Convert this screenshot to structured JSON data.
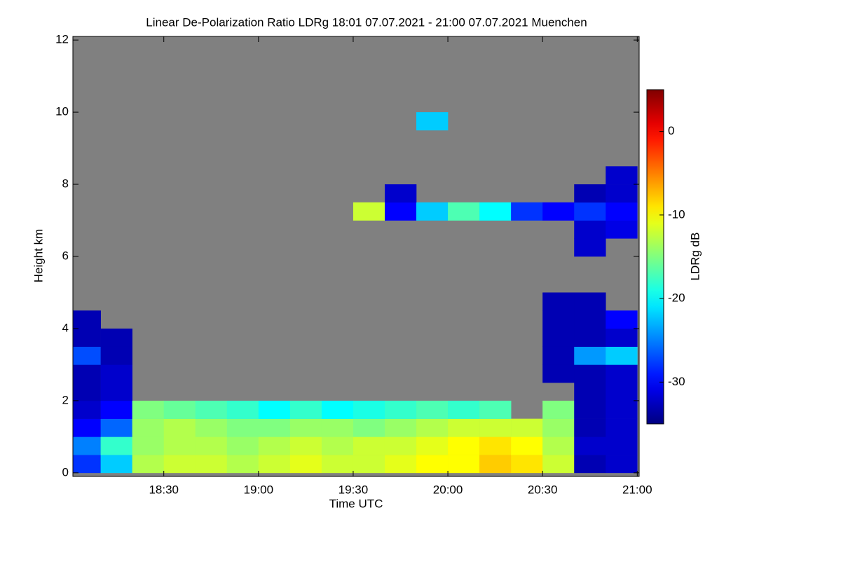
{
  "chart_data": {
    "type": "heatmap",
    "title": "Linear De-Polarization Ratio LDRg   18:01 07.07.2021 - 21:00 07.07.2021 Muenchen",
    "xlabel": "Time UTC",
    "ylabel": "Height km",
    "colorbar_label": "LDRg dB",
    "background": "#808080",
    "colormap": "jet",
    "xlim": [
      18.02,
      21.01
    ],
    "xticks": [
      {
        "value": 18.5,
        "label": "18:30"
      },
      {
        "value": 19,
        "label": "19:00"
      },
      {
        "value": 19.5,
        "label": "19:30"
      },
      {
        "value": 20,
        "label": "20:00"
      },
      {
        "value": 20.5,
        "label": "20:30"
      },
      {
        "value": 21,
        "label": "21:00"
      }
    ],
    "ylim": [
      -0.1,
      12.1
    ],
    "yticks": [
      0,
      2,
      4,
      6,
      8,
      10,
      12
    ],
    "zlim": [
      -35,
      5
    ],
    "zticks": [
      0,
      -10,
      -20,
      -30
    ],
    "x_bins": [
      18,
      18.1667,
      18.3333,
      18.5,
      18.6667,
      18.8333,
      19,
      19.1667,
      19.3333,
      19.5,
      19.6667,
      19.8333,
      20,
      20.1667,
      20.3333,
      20.5,
      20.6667,
      20.8333,
      21
    ],
    "y_bins": [
      0,
      0.5,
      1,
      1.5,
      2,
      2.5,
      3,
      3.5,
      4,
      4.5,
      5,
      5.5,
      6,
      6.5,
      7,
      7.5,
      8,
      8.5,
      9,
      9.5,
      10
    ],
    "values": [
      [
        -28,
        -22,
        -13,
        -12,
        -12,
        -13,
        -12,
        -11,
        -12,
        -12,
        -11,
        -10,
        -10,
        -8,
        -9,
        -12,
        -33,
        -32
      ],
      [
        -25,
        -18,
        -14,
        -13,
        -13,
        -14,
        -13,
        -12,
        -13,
        -12,
        -12,
        -11,
        -10,
        -9,
        -10,
        -13,
        -32,
        -32
      ],
      [
        -30,
        -26,
        -14,
        -13,
        -14,
        -15,
        -15,
        -14,
        -14,
        -15,
        -14,
        -13,
        -12,
        -12,
        -12,
        -14,
        -33,
        -32
      ],
      [
        -32,
        -30,
        -15,
        -16,
        -17,
        -18,
        -20,
        -18,
        -20,
        -19,
        -18,
        -17,
        -18,
        -17,
        null,
        -15,
        -33,
        -32
      ],
      [
        -33,
        -32,
        null,
        null,
        null,
        null,
        null,
        null,
        null,
        null,
        null,
        null,
        null,
        null,
        null,
        null,
        -33,
        -32
      ],
      [
        -33,
        -32,
        null,
        null,
        null,
        null,
        null,
        null,
        null,
        null,
        null,
        null,
        null,
        null,
        null,
        -33,
        -33,
        -32
      ],
      [
        -27,
        -33,
        null,
        null,
        null,
        null,
        null,
        null,
        null,
        null,
        null,
        null,
        null,
        null,
        null,
        -33,
        -24,
        -22
      ],
      [
        -33,
        -33,
        null,
        null,
        null,
        null,
        null,
        null,
        null,
        null,
        null,
        null,
        null,
        null,
        null,
        -33,
        -33,
        -32
      ],
      [
        -33,
        null,
        null,
        null,
        null,
        null,
        null,
        null,
        null,
        null,
        null,
        null,
        null,
        null,
        null,
        -33,
        -33,
        -30
      ],
      [
        null,
        null,
        null,
        null,
        null,
        null,
        null,
        null,
        null,
        null,
        null,
        null,
        null,
        null,
        null,
        -33,
        -33,
        null
      ],
      [
        null,
        null,
        null,
        null,
        null,
        null,
        null,
        null,
        null,
        null,
        null,
        null,
        null,
        null,
        null,
        null,
        null,
        null
      ],
      [
        null,
        null,
        null,
        null,
        null,
        null,
        null,
        null,
        null,
        null,
        null,
        null,
        null,
        null,
        null,
        null,
        null,
        null
      ],
      [
        null,
        null,
        null,
        null,
        null,
        null,
        null,
        null,
        null,
        null,
        null,
        null,
        null,
        null,
        null,
        null,
        -32,
        null
      ],
      [
        null,
        null,
        null,
        null,
        null,
        null,
        null,
        null,
        null,
        null,
        null,
        null,
        null,
        null,
        null,
        null,
        -32,
        -31
      ],
      [
        null,
        null,
        null,
        null,
        null,
        null,
        null,
        null,
        null,
        -12,
        -30,
        -22,
        -17,
        -20,
        -28,
        -30,
        -28,
        -30
      ],
      [
        null,
        null,
        null,
        null,
        null,
        null,
        null,
        null,
        null,
        null,
        -32,
        null,
        null,
        null,
        null,
        null,
        -33,
        -32
      ],
      [
        null,
        null,
        null,
        null,
        null,
        null,
        null,
        null,
        null,
        null,
        null,
        null,
        null,
        null,
        null,
        null,
        null,
        -32
      ],
      [
        null,
        null,
        null,
        null,
        null,
        null,
        null,
        null,
        null,
        null,
        null,
        null,
        null,
        null,
        null,
        null,
        null,
        null
      ],
      [
        null,
        null,
        null,
        null,
        null,
        null,
        null,
        null,
        null,
        null,
        null,
        null,
        null,
        null,
        null,
        null,
        null,
        null
      ],
      [
        null,
        null,
        null,
        null,
        null,
        null,
        null,
        null,
        null,
        null,
        null,
        -22,
        null,
        null,
        null,
        null,
        null,
        null
      ]
    ]
  }
}
